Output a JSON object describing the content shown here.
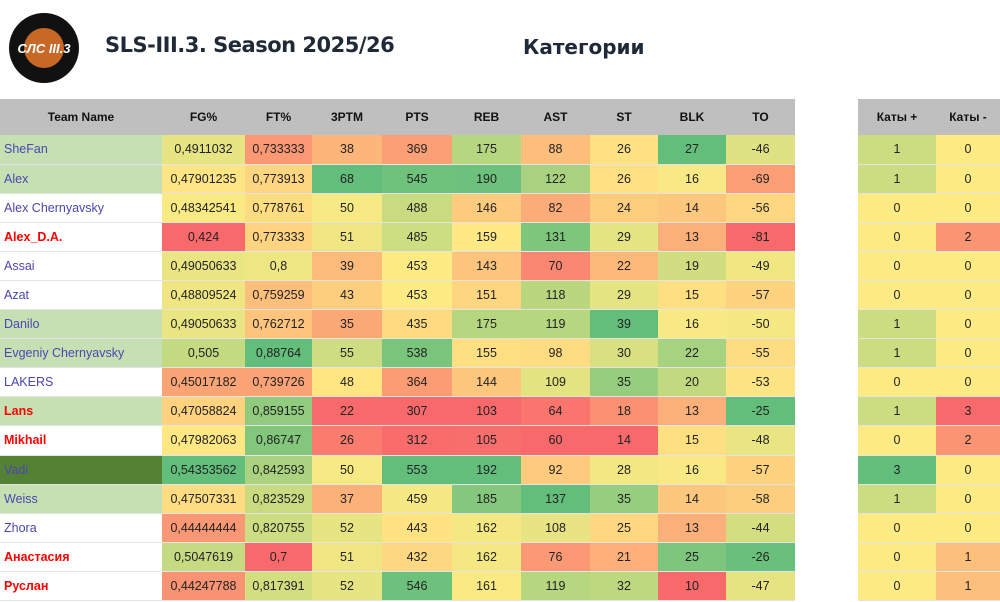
{
  "header": {
    "logo_text": "СЛС III.3",
    "title": "SLS-III.3. Season 2025/26",
    "section": "Категории"
  },
  "colors": {
    "red": "#f8696b",
    "yellow": "#ffeb84",
    "green": "#63be7b",
    "header_bg": "#bfbfbf",
    "name_light": "#c6e0b4",
    "name_dark": "#548235"
  },
  "columns": [
    "Team Name",
    "FG%",
    "FT%",
    "3PTM",
    "PTS",
    "REB",
    "AST",
    "ST",
    "BLK",
    "TO"
  ],
  "cat_columns": [
    "Каты +",
    "Каты -"
  ],
  "rows": [
    {
      "name": "SheFan",
      "hl": "light",
      "red": false,
      "v": [
        "0,4911032",
        "0,733333",
        "38",
        "369",
        "175",
        "88",
        "26",
        "27",
        "-46"
      ],
      "c": [
        "1",
        "0"
      ]
    },
    {
      "name": "Alex",
      "hl": "light",
      "red": false,
      "v": [
        "0,47901235",
        "0,773913",
        "68",
        "545",
        "190",
        "122",
        "26",
        "16",
        "-69"
      ],
      "c": [
        "1",
        "0"
      ]
    },
    {
      "name": "Alex Chernyavsky",
      "hl": "",
      "red": false,
      "v": [
        "0,48342541",
        "0,778761",
        "50",
        "488",
        "146",
        "82",
        "24",
        "14",
        "-56"
      ],
      "c": [
        "0",
        "0"
      ]
    },
    {
      "name": "Alex_D.A.",
      "hl": "",
      "red": true,
      "v": [
        "0,424",
        "0,773333",
        "51",
        "485",
        "159",
        "131",
        "29",
        "13",
        "-81"
      ],
      "c": [
        "0",
        "2"
      ]
    },
    {
      "name": "Assai",
      "hl": "",
      "red": false,
      "v": [
        "0,49050633",
        "0,8",
        "39",
        "453",
        "143",
        "70",
        "22",
        "19",
        "-49"
      ],
      "c": [
        "0",
        "0"
      ]
    },
    {
      "name": "Azat",
      "hl": "",
      "red": false,
      "v": [
        "0,48809524",
        "0,759259",
        "43",
        "453",
        "151",
        "118",
        "29",
        "15",
        "-57"
      ],
      "c": [
        "0",
        "0"
      ]
    },
    {
      "name": "Danilo",
      "hl": "light",
      "red": false,
      "v": [
        "0,49050633",
        "0,762712",
        "35",
        "435",
        "175",
        "119",
        "39",
        "16",
        "-50"
      ],
      "c": [
        "1",
        "0"
      ]
    },
    {
      "name": "Evgeniy Chernyavsky",
      "hl": "light",
      "red": false,
      "v": [
        "0,505",
        "0,88764",
        "55",
        "538",
        "155",
        "98",
        "30",
        "22",
        "-55"
      ],
      "c": [
        "1",
        "0"
      ]
    },
    {
      "name": "LAKERS",
      "hl": "",
      "red": false,
      "v": [
        "0,45017182",
        "0,739726",
        "48",
        "364",
        "144",
        "109",
        "35",
        "20",
        "-53"
      ],
      "c": [
        "0",
        "0"
      ]
    },
    {
      "name": "Lans",
      "hl": "light",
      "red": true,
      "v": [
        "0,47058824",
        "0,859155",
        "22",
        "307",
        "103",
        "64",
        "18",
        "13",
        "-25"
      ],
      "c": [
        "1",
        "3"
      ]
    },
    {
      "name": "Mikhail",
      "hl": "",
      "red": true,
      "v": [
        "0,47982063",
        "0,86747",
        "26",
        "312",
        "105",
        "60",
        "14",
        "15",
        "-48"
      ],
      "c": [
        "0",
        "2"
      ]
    },
    {
      "name": "Vadi",
      "hl": "dark",
      "red": false,
      "v": [
        "0,54353562",
        "0,842593",
        "50",
        "553",
        "192",
        "92",
        "28",
        "16",
        "-57"
      ],
      "c": [
        "3",
        "0"
      ]
    },
    {
      "name": "Weiss",
      "hl": "light",
      "red": false,
      "v": [
        "0,47507331",
        "0,823529",
        "37",
        "459",
        "185",
        "137",
        "35",
        "14",
        "-58"
      ],
      "c": [
        "1",
        "0"
      ]
    },
    {
      "name": "Zhora",
      "hl": "",
      "red": false,
      "v": [
        "0,44444444",
        "0,820755",
        "52",
        "443",
        "162",
        "108",
        "25",
        "13",
        "-44"
      ],
      "c": [
        "0",
        "0"
      ]
    },
    {
      "name": "Анастасия",
      "hl": "",
      "red": true,
      "v": [
        "0,5047619",
        "0,7",
        "51",
        "432",
        "162",
        "76",
        "21",
        "25",
        "-26"
      ],
      "c": [
        "0",
        "1"
      ]
    },
    {
      "name": "Руслан",
      "hl": "",
      "red": true,
      "v": [
        "0,44247788",
        "0,817391",
        "52",
        "546",
        "161",
        "119",
        "32",
        "10",
        "-47"
      ],
      "c": [
        "0",
        "1"
      ]
    }
  ]
}
